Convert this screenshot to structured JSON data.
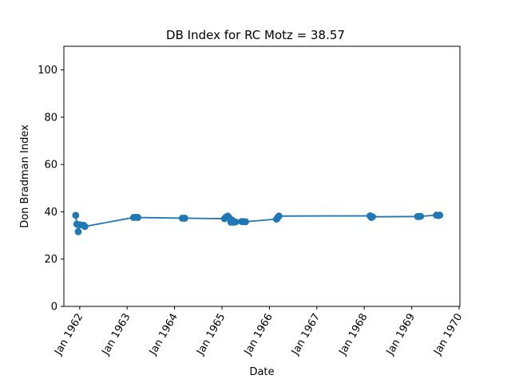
{
  "chart_data": {
    "type": "line",
    "title": "DB Index for RC Motz = 38.57",
    "xlabel": "Date",
    "ylabel": "Don Bradman Index",
    "ylim": [
      0,
      110
    ],
    "yticks": [
      0,
      20,
      40,
      60,
      80,
      100
    ],
    "xlim": [
      "1961-09-01",
      "1970-01-07"
    ],
    "xticks": [
      {
        "date": "1962-01-01",
        "label": "Jan 1962"
      },
      {
        "date": "1963-01-01",
        "label": "Jan 1963"
      },
      {
        "date": "1964-01-01",
        "label": "Jan 1964"
      },
      {
        "date": "1965-01-01",
        "label": "Jan 1965"
      },
      {
        "date": "1966-01-01",
        "label": "Jan 1966"
      },
      {
        "date": "1967-01-01",
        "label": "Jan 1967"
      },
      {
        "date": "1968-01-01",
        "label": "Jan 1968"
      },
      {
        "date": "1969-01-01",
        "label": "Jan 1969"
      },
      {
        "date": "1970-01-01",
        "label": "Jan 1970"
      }
    ],
    "grid": false,
    "series": [
      {
        "color": "#1f77b4",
        "marker": "circle",
        "points": [
          {
            "x": "1961-12-01",
            "y": 38.5
          },
          {
            "x": "1961-12-10",
            "y": 34.8
          },
          {
            "x": "1961-12-20",
            "y": 31.6
          },
          {
            "x": "1962-01-05",
            "y": 34.5
          },
          {
            "x": "1962-02-01",
            "y": 34.3
          },
          {
            "x": "1962-02-10",
            "y": 33.8
          },
          {
            "x": "1963-02-20",
            "y": 37.6
          },
          {
            "x": "1963-03-10",
            "y": 37.7
          },
          {
            "x": "1963-03-25",
            "y": 37.6
          },
          {
            "x": "1964-03-01",
            "y": 37.3
          },
          {
            "x": "1964-03-20",
            "y": 37.3
          },
          {
            "x": "1965-01-20",
            "y": 37.1
          },
          {
            "x": "1965-02-01",
            "y": 37.8
          },
          {
            "x": "1965-02-15",
            "y": 38.2
          },
          {
            "x": "1965-02-25",
            "y": 37.5
          },
          {
            "x": "1965-03-10",
            "y": 35.6
          },
          {
            "x": "1965-03-20",
            "y": 36.5
          },
          {
            "x": "1965-04-01",
            "y": 35.6
          },
          {
            "x": "1965-04-15",
            "y": 35.7
          },
          {
            "x": "1965-06-01",
            "y": 35.9
          },
          {
            "x": "1965-06-15",
            "y": 35.8
          },
          {
            "x": "1965-07-01",
            "y": 35.8
          },
          {
            "x": "1966-02-25",
            "y": 36.9
          },
          {
            "x": "1966-03-05",
            "y": 37.5
          },
          {
            "x": "1966-03-15",
            "y": 38.2
          },
          {
            "x": "1968-02-15",
            "y": 38.3
          },
          {
            "x": "1968-02-25",
            "y": 37.6
          },
          {
            "x": "1968-03-05",
            "y": 37.9
          },
          {
            "x": "1969-02-15",
            "y": 38.0
          },
          {
            "x": "1969-03-01",
            "y": 38.0
          },
          {
            "x": "1969-03-10",
            "y": 38.1
          },
          {
            "x": "1969-07-10",
            "y": 38.6
          },
          {
            "x": "1969-07-25",
            "y": 38.4
          },
          {
            "x": "1969-08-05",
            "y": 38.57
          }
        ]
      }
    ]
  }
}
